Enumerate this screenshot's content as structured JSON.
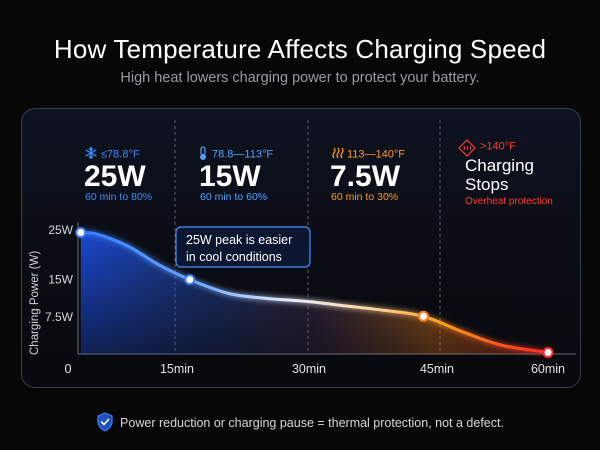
{
  "header": {
    "title": "How Temperature Affects Charging Speed",
    "subtitle": "High heat lowers charging power to protect your battery."
  },
  "zones": [
    {
      "temp": "≤78.8°F",
      "power": "25W",
      "note": "60 min to 80%",
      "color": "#3a8dff",
      "icon": "snowflake-icon"
    },
    {
      "temp": "78.8—113°F",
      "power": "15W",
      "note": "60 min to 60%",
      "color": "#4ea3ff",
      "icon": "thermometer-icon"
    },
    {
      "temp": "113—140°F",
      "power": "7.5W",
      "note": "60 min to 30%",
      "color": "#ff9a1f",
      "icon": "heat-waves-icon"
    },
    {
      "temp": ">140°F",
      "power_line1": "Charging",
      "power_line2": "Stops",
      "note": "Overheat protection",
      "color": "#ff3b30",
      "icon": "overheat-warning-icon"
    }
  ],
  "callout": {
    "line1": "25W peak is easier",
    "line2": "in cool conditions"
  },
  "footer": {
    "text": "Power reduction or charging pause = thermal protection, not a defect.",
    "icon": "shield-check-icon"
  },
  "chart_data": {
    "type": "line",
    "ylabel": "Charging Power (W)",
    "xlabel": "",
    "x_ticks": [
      "0",
      "15min",
      "30min",
      "45min",
      "60min"
    ],
    "y_ticks": [
      "25W",
      "15W",
      "7.5W"
    ],
    "xlim": [
      0,
      60
    ],
    "ylim": [
      0,
      27
    ],
    "series": [
      {
        "x": [
          1,
          3,
          7,
          11,
          15,
          20,
          25,
          30,
          35,
          40,
          45,
          50,
          55,
          61
        ],
        "y": [
          24.5,
          24.2,
          21.8,
          18,
          15,
          12.2,
          11.2,
          10.6,
          9.7,
          8.8,
          7.6,
          4.5,
          1.8,
          0.3
        ],
        "markers": [
          {
            "x": 1,
            "y": 24.5
          },
          {
            "x": 15,
            "y": 15
          },
          {
            "x": 45,
            "y": 7.6
          },
          {
            "x": 61,
            "y": 0.3
          }
        ]
      }
    ]
  }
}
